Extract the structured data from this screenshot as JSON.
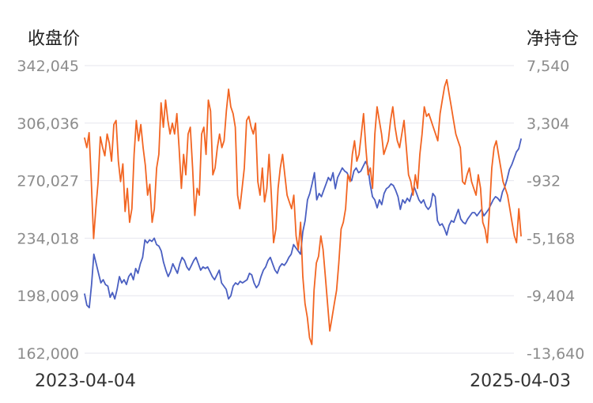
{
  "chart_data": {
    "type": "line",
    "left_axis_title": "收盘价",
    "right_axis_title": "净持仓",
    "left_ticks": [
      "342,045",
      "306,036",
      "270,027",
      "234,018",
      "198,009",
      "162,000"
    ],
    "right_ticks": [
      "7,540",
      "3,304",
      "-932",
      "-5,168",
      "-9,404",
      "-13,640"
    ],
    "ylim_left": [
      162000,
      342045
    ],
    "ylim_right": [
      -13640,
      7540
    ],
    "x_labels": [
      "2023-04-04",
      "2025-04-03"
    ],
    "grid": true,
    "legend": "none",
    "series": [
      {
        "axis": "left",
        "color": "#4a5fc1",
        "values": [
          199000,
          192000,
          190500,
          205000,
          224000,
          218000,
          212000,
          206000,
          208000,
          205000,
          204000,
          197000,
          200000,
          196000,
          202000,
          210000,
          206000,
          208000,
          205000,
          210000,
          212000,
          208000,
          215000,
          212000,
          218000,
          222000,
          233000,
          231000,
          233000,
          232000,
          234000,
          230000,
          229000,
          226000,
          219000,
          214000,
          210000,
          213000,
          218000,
          215000,
          212000,
          218000,
          222000,
          220000,
          216000,
          214000,
          217000,
          220000,
          222000,
          218000,
          214000,
          216000,
          215000,
          216000,
          213000,
          210000,
          208000,
          211000,
          214000,
          206000,
          204000,
          202000,
          196000,
          198000,
          204000,
          206000,
          205000,
          207000,
          206000,
          207000,
          208000,
          212000,
          211000,
          206000,
          203000,
          205000,
          210000,
          214000,
          216000,
          220000,
          222000,
          218000,
          214000,
          212000,
          216000,
          218000,
          217000,
          219000,
          222000,
          224000,
          230000,
          228000,
          226000,
          224000,
          238000,
          245000,
          258000,
          262000,
          268000,
          275000,
          258000,
          262000,
          260000,
          264000,
          268000,
          272000,
          270000,
          275000,
          265000,
          272000,
          275000,
          278000,
          276000,
          275000,
          272000,
          270000,
          276000,
          278000,
          275000,
          276000,
          279000,
          282000,
          279000,
          268000,
          260000,
          258000,
          253000,
          258000,
          255000,
          262000,
          265000,
          266000,
          268000,
          267000,
          264000,
          260000,
          252000,
          258000,
          256000,
          259000,
          257000,
          262000,
          266000,
          262000,
          258000,
          256000,
          258000,
          254000,
          252000,
          254000,
          262000,
          260000,
          245000,
          242000,
          243000,
          240000,
          236000,
          242000,
          245000,
          244000,
          248000,
          252000,
          246000,
          244000,
          243000,
          246000,
          248000,
          250000,
          250000,
          248000,
          250000,
          252000,
          248000,
          250000,
          252000,
          255000,
          258000,
          260000,
          259000,
          257000,
          263000,
          266000,
          271000,
          277000,
          280000,
          284000,
          288000,
          290000,
          296000
        ]
      },
      {
        "axis": "right",
        "color": "#f26522",
        "values": [
          2200,
          1500,
          2600,
          -1000,
          -5200,
          -3000,
          -1000,
          2300,
          1500,
          900,
          2500,
          1800,
          500,
          3200,
          3500,
          500,
          -1000,
          300,
          -3200,
          -1500,
          -4000,
          -3000,
          1000,
          3500,
          2000,
          3200,
          1500,
          200,
          -2000,
          -1200,
          -4000,
          -3000,
          0,
          1000,
          4800,
          3000,
          5000,
          3500,
          2500,
          3300,
          2500,
          4000,
          1500,
          -1500,
          1000,
          -500,
          2500,
          3000,
          0,
          -3500,
          -1500,
          -2000,
          2500,
          3000,
          1000,
          5000,
          4200,
          -500,
          0,
          1500,
          2500,
          1500,
          2000,
          4200,
          5800,
          4500,
          4000,
          3000,
          -2000,
          -3000,
          -1500,
          0,
          3500,
          3800,
          3000,
          2500,
          3300,
          -1000,
          -2000,
          0,
          -2500,
          -1500,
          1000,
          -2000,
          -5500,
          -4500,
          -1500,
          0,
          1000,
          -500,
          -2000,
          -2500,
          -3000,
          -2000,
          -5000,
          -6000,
          -4000,
          -8000,
          -10000,
          -11000,
          -12500,
          -13000,
          -9000,
          -7000,
          -6500,
          -5000,
          -6000,
          -8000,
          -10000,
          -12000,
          -11000,
          -10000,
          -9000,
          -7000,
          -4500,
          -4000,
          -3000,
          -500,
          -1000,
          1000,
          2000,
          500,
          1000,
          2500,
          4000,
          1500,
          -500,
          0,
          -1500,
          2500,
          4500,
          3500,
          2500,
          1000,
          1500,
          2000,
          3500,
          4500,
          3000,
          2000,
          1500,
          2500,
          3500,
          1500,
          -500,
          -1000,
          -2000,
          -500,
          -1500,
          1000,
          2500,
          4500,
          3800,
          4000,
          3500,
          3000,
          2500,
          2000,
          4000,
          5000,
          6000,
          6500,
          5500,
          4500,
          3500,
          2500,
          2000,
          1500,
          -1000,
          -1200,
          -500,
          0,
          -1000,
          -1500,
          -2000,
          -500,
          -1500,
          -4000,
          -4500,
          -5500,
          -3000,
          0,
          1500,
          2000,
          1000,
          0,
          -1000,
          -1500,
          -2000,
          -3000,
          -4000,
          -5000,
          -5500,
          -3000,
          -5000
        ]
      }
    ]
  }
}
